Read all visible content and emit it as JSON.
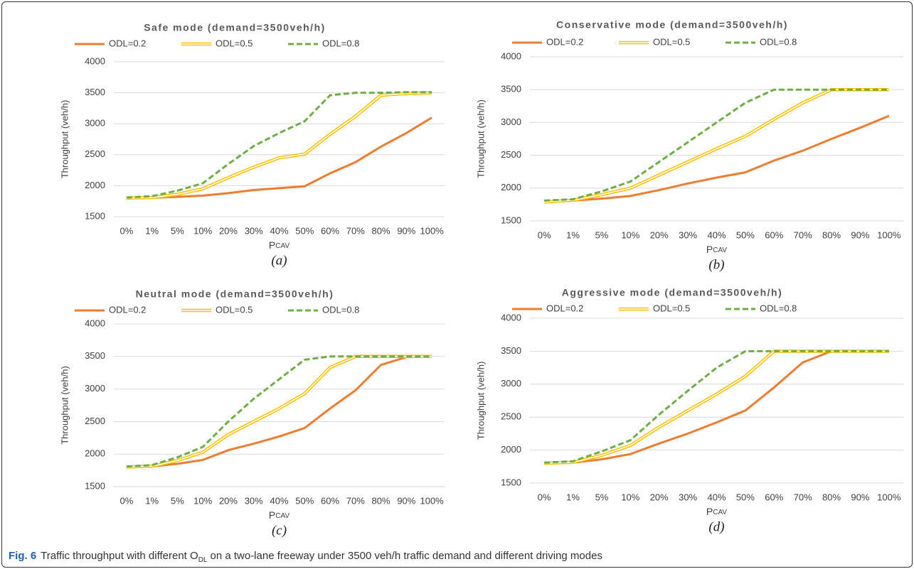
{
  "chart_data": [
    {
      "type": "line",
      "title": "Safe mode (demand=3500veh/h)",
      "y_label": "Throughput (veh/h)",
      "x_label": "P",
      "x_label_sub": "CAV",
      "panel_label": "(a)",
      "categories": [
        "0%",
        "1%",
        "5%",
        "10%",
        "20%",
        "30%",
        "40%",
        "50%",
        "60%",
        "70%",
        "80%",
        "90%",
        "100%"
      ],
      "ylim": [
        1500,
        4000
      ],
      "yticks": [
        1500,
        2000,
        2500,
        3000,
        3500,
        4000
      ],
      "grid": true,
      "series": [
        {
          "name": "ODL=0.2",
          "color": "#ed7d31",
          "style": "solid",
          "values": [
            1800,
            1805,
            1820,
            1840,
            1880,
            1930,
            1960,
            1990,
            2200,
            2380,
            2630,
            2850,
            3100
          ]
        },
        {
          "name": "ODL=0.5",
          "color": "#ffc000",
          "style": "double",
          "values": [
            1800,
            1810,
            1860,
            1950,
            2130,
            2300,
            2450,
            2510,
            2830,
            3120,
            3460,
            3490,
            3500
          ]
        },
        {
          "name": "ODL=0.8",
          "color": "#70ad47",
          "style": "dashed",
          "values": [
            1810,
            1830,
            1920,
            2040,
            2350,
            2640,
            2850,
            3040,
            3460,
            3500,
            3500,
            3510,
            3510
          ]
        }
      ]
    },
    {
      "type": "line",
      "title": "Conservative mode (demand=3500veh/h)",
      "y_label": "Throughput (veh/h)",
      "x_label": "P",
      "x_label_sub": "CAV",
      "panel_label": "(b)",
      "categories": [
        "0%",
        "1%",
        "5%",
        "10%",
        "20%",
        "30%",
        "40%",
        "50%",
        "60%",
        "70%",
        "80%",
        "90%",
        "100%"
      ],
      "ylim": [
        1500,
        4000
      ],
      "yticks": [
        1500,
        2000,
        2500,
        3000,
        3500,
        4000
      ],
      "grid": true,
      "series": [
        {
          "name": "ODL=0.2",
          "color": "#ed7d31",
          "style": "solid",
          "values": [
            1800,
            1810,
            1840,
            1880,
            1970,
            2070,
            2160,
            2240,
            2420,
            2570,
            2750,
            2920,
            3100
          ]
        },
        {
          "name": "ODL=0.5",
          "color": "#ffc000",
          "style": "double",
          "values": [
            1790,
            1815,
            1900,
            2000,
            2200,
            2400,
            2600,
            2790,
            3050,
            3300,
            3500,
            3500,
            3500
          ]
        },
        {
          "name": "ODL=0.8",
          "color": "#70ad47",
          "style": "dashed",
          "values": [
            1810,
            1830,
            1950,
            2100,
            2400,
            2700,
            3000,
            3300,
            3500,
            3500,
            3500,
            3500,
            3500
          ]
        }
      ]
    },
    {
      "type": "line",
      "title": "Neutral mode (demand=3500veh/h)",
      "y_label": "Throughput (veh/h)",
      "x_label": "P",
      "x_label_sub": "CAV",
      "panel_label": "(c)",
      "categories": [
        "0%",
        "1%",
        "5%",
        "10%",
        "20%",
        "30%",
        "40%",
        "50%",
        "60%",
        "70%",
        "80%",
        "90%",
        "100%"
      ],
      "ylim": [
        1500,
        4000
      ],
      "yticks": [
        1500,
        2000,
        2500,
        3000,
        3500,
        4000
      ],
      "grid": true,
      "series": [
        {
          "name": "ODL=0.2",
          "color": "#ed7d31",
          "style": "solid",
          "values": [
            1800,
            1810,
            1850,
            1910,
            2060,
            2160,
            2270,
            2400,
            2700,
            2980,
            3370,
            3490,
            3500
          ]
        },
        {
          "name": "ODL=0.5",
          "color": "#ffc000",
          "style": "double",
          "values": [
            1800,
            1815,
            1900,
            2030,
            2300,
            2500,
            2700,
            2930,
            3330,
            3500,
            3500,
            3500,
            3500
          ]
        },
        {
          "name": "ODL=0.8",
          "color": "#70ad47",
          "style": "dashed",
          "values": [
            1810,
            1830,
            1950,
            2110,
            2500,
            2850,
            3150,
            3450,
            3500,
            3500,
            3500,
            3500,
            3500
          ]
        }
      ]
    },
    {
      "type": "line",
      "title": "Aggressive mode (demand=3500veh/h)",
      "y_label": "Throughput (veh/h)",
      "x_label": "P",
      "x_label_sub": "CAV",
      "panel_label": "(d)",
      "categories": [
        "0%",
        "1%",
        "5%",
        "10%",
        "20%",
        "30%",
        "40%",
        "50%",
        "60%",
        "70%",
        "80%",
        "90%",
        "100%"
      ],
      "ylim": [
        1500,
        4000
      ],
      "yticks": [
        1500,
        2000,
        2500,
        3000,
        3500,
        4000
      ],
      "grid": true,
      "series": [
        {
          "name": "ODL=0.2",
          "color": "#ed7d31",
          "style": "solid",
          "values": [
            1800,
            1810,
            1860,
            1940,
            2100,
            2250,
            2420,
            2600,
            2950,
            3330,
            3500,
            3500,
            3500
          ]
        },
        {
          "name": "ODL=0.5",
          "color": "#ffc000",
          "style": "double",
          "values": [
            1800,
            1815,
            1920,
            2070,
            2350,
            2600,
            2850,
            3120,
            3500,
            3500,
            3500,
            3500,
            3500
          ]
        },
        {
          "name": "ODL=0.8",
          "color": "#70ad47",
          "style": "dashed",
          "values": [
            1810,
            1830,
            1980,
            2150,
            2540,
            2900,
            3250,
            3500,
            3500,
            3500,
            3500,
            3500,
            3500
          ]
        }
      ]
    }
  ],
  "caption": {
    "label": "Fig. 6",
    "text_before": "Traffic throughput with different O",
    "subscript": "DL",
    "text_after": "on a two-lane freeway under 3500 veh/h traffic demand and different driving modes"
  }
}
